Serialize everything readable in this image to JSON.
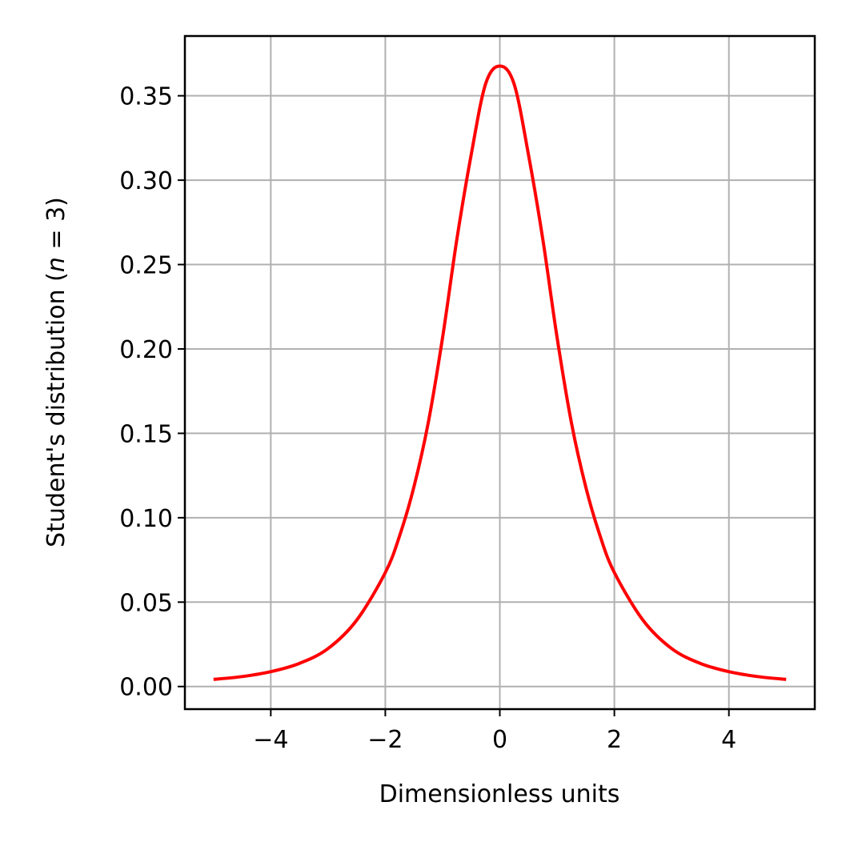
{
  "chart_data": {
    "type": "line",
    "title": "",
    "xlabel": "Dimensionless units",
    "ylabel_prefix": "Student's distribution (",
    "ylabel_var": "n",
    "ylabel_suffix": " = 3)",
    "xlim": [
      -5.5,
      5.5
    ],
    "ylim": [
      -0.0134,
      0.3854
    ],
    "xticks": [
      -4,
      -2,
      0,
      2,
      4
    ],
    "xtick_labels": [
      "−4",
      "−2",
      "0",
      "2",
      "4"
    ],
    "yticks": [
      0.0,
      0.05,
      0.1,
      0.15,
      0.2,
      0.25,
      0.3,
      0.35
    ],
    "ytick_labels": [
      "0.00",
      "0.05",
      "0.10",
      "0.15",
      "0.20",
      "0.25",
      "0.30",
      "0.35"
    ],
    "grid": true,
    "series": [
      {
        "color": "#ff0000",
        "x": [
          -5,
          -4.5,
          -4,
          -3.5,
          -3,
          -2.5,
          -2,
          -1.75,
          -1.5,
          -1.25,
          -1,
          -0.75,
          -0.5,
          -0.25,
          0,
          0.25,
          0.5,
          0.75,
          1,
          1.25,
          1.5,
          1.75,
          2,
          2.5,
          3,
          3.5,
          4,
          4.5,
          5
        ],
        "y": [
          0.0042,
          0.0059,
          0.0088,
          0.0137,
          0.0225,
          0.0393,
          0.0675,
          0.0893,
          0.1183,
          0.1563,
          0.2067,
          0.2651,
          0.3151,
          0.3569,
          0.3676,
          0.3569,
          0.3151,
          0.2651,
          0.2067,
          0.1563,
          0.1183,
          0.0893,
          0.0675,
          0.0393,
          0.0225,
          0.0137,
          0.0088,
          0.0059,
          0.0042
        ]
      }
    ],
    "colors": {
      "grid": "#b0b0b0",
      "axes": "#000000",
      "line": "#ff0000"
    }
  }
}
